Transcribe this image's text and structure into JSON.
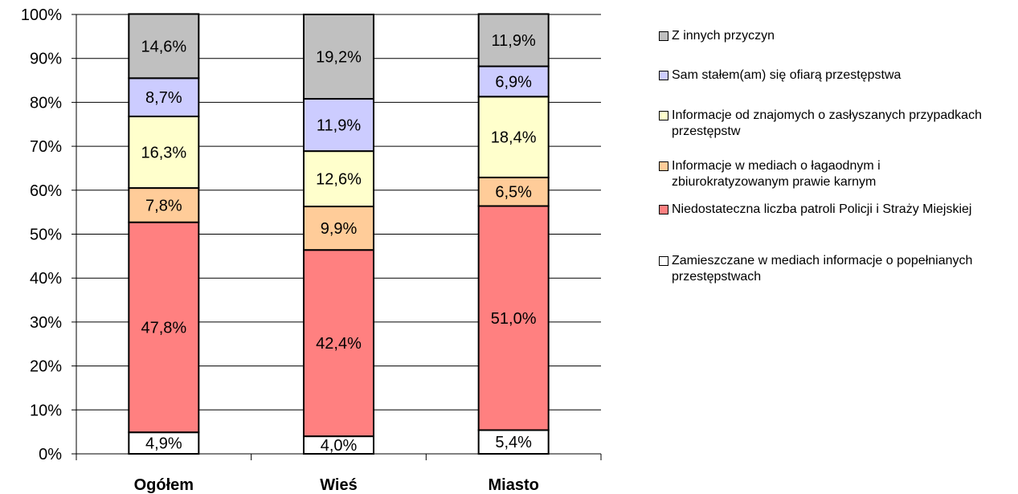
{
  "chart_data": {
    "type": "bar",
    "stacked": true,
    "categories": [
      "Ogółem",
      "Wieś",
      "Miasto"
    ],
    "y_axis": {
      "min": 0,
      "max": 100,
      "tick_labels": [
        "0%",
        "10%",
        "20%",
        "30%",
        "40%",
        "50%",
        "60%",
        "70%",
        "80%",
        "90%",
        "100%"
      ]
    },
    "grid": true,
    "legend_position": "right",
    "series": [
      {
        "name": "Zamieszczane w mediach informacje o popełnianych przestępstwach",
        "color": "#ffffff",
        "values": [
          4.9,
          4.0,
          5.4
        ],
        "labels": [
          "4,9%",
          "4,0%",
          "5,4%"
        ]
      },
      {
        "name": "Niedostateczna liczba patroli Policji i Straży Miejskiej",
        "color": "#ff8080",
        "values": [
          47.8,
          42.4,
          51.0
        ],
        "labels": [
          "47,8%",
          "42,4%",
          "51,0%"
        ]
      },
      {
        "name": "Informacje w mediach o łagaodnym i zbiurokratyzowanym prawie karnym",
        "color": "#ffcc99",
        "values": [
          7.8,
          9.9,
          6.5
        ],
        "labels": [
          "7,8%",
          "9,9%",
          "6,5%"
        ]
      },
      {
        "name": "Informacje od znajomych o zasłyszanych przypadkach przestępstw",
        "color": "#ffffcc",
        "values": [
          16.3,
          12.6,
          18.4
        ],
        "labels": [
          "16,3%",
          "12,6%",
          "18,4%"
        ]
      },
      {
        "name": "Sam stałem(am) się ofiarą przestępstwa",
        "color": "#ccccff",
        "values": [
          8.7,
          11.9,
          6.9
        ],
        "labels": [
          "8,7%",
          "11,9%",
          "6,9%"
        ]
      },
      {
        "name": "Z innych przyczyn",
        "color": "#c0c0c0",
        "values": [
          14.6,
          19.2,
          11.9
        ],
        "labels": [
          "14,6%",
          "19,2%",
          "11,9%"
        ]
      }
    ]
  }
}
